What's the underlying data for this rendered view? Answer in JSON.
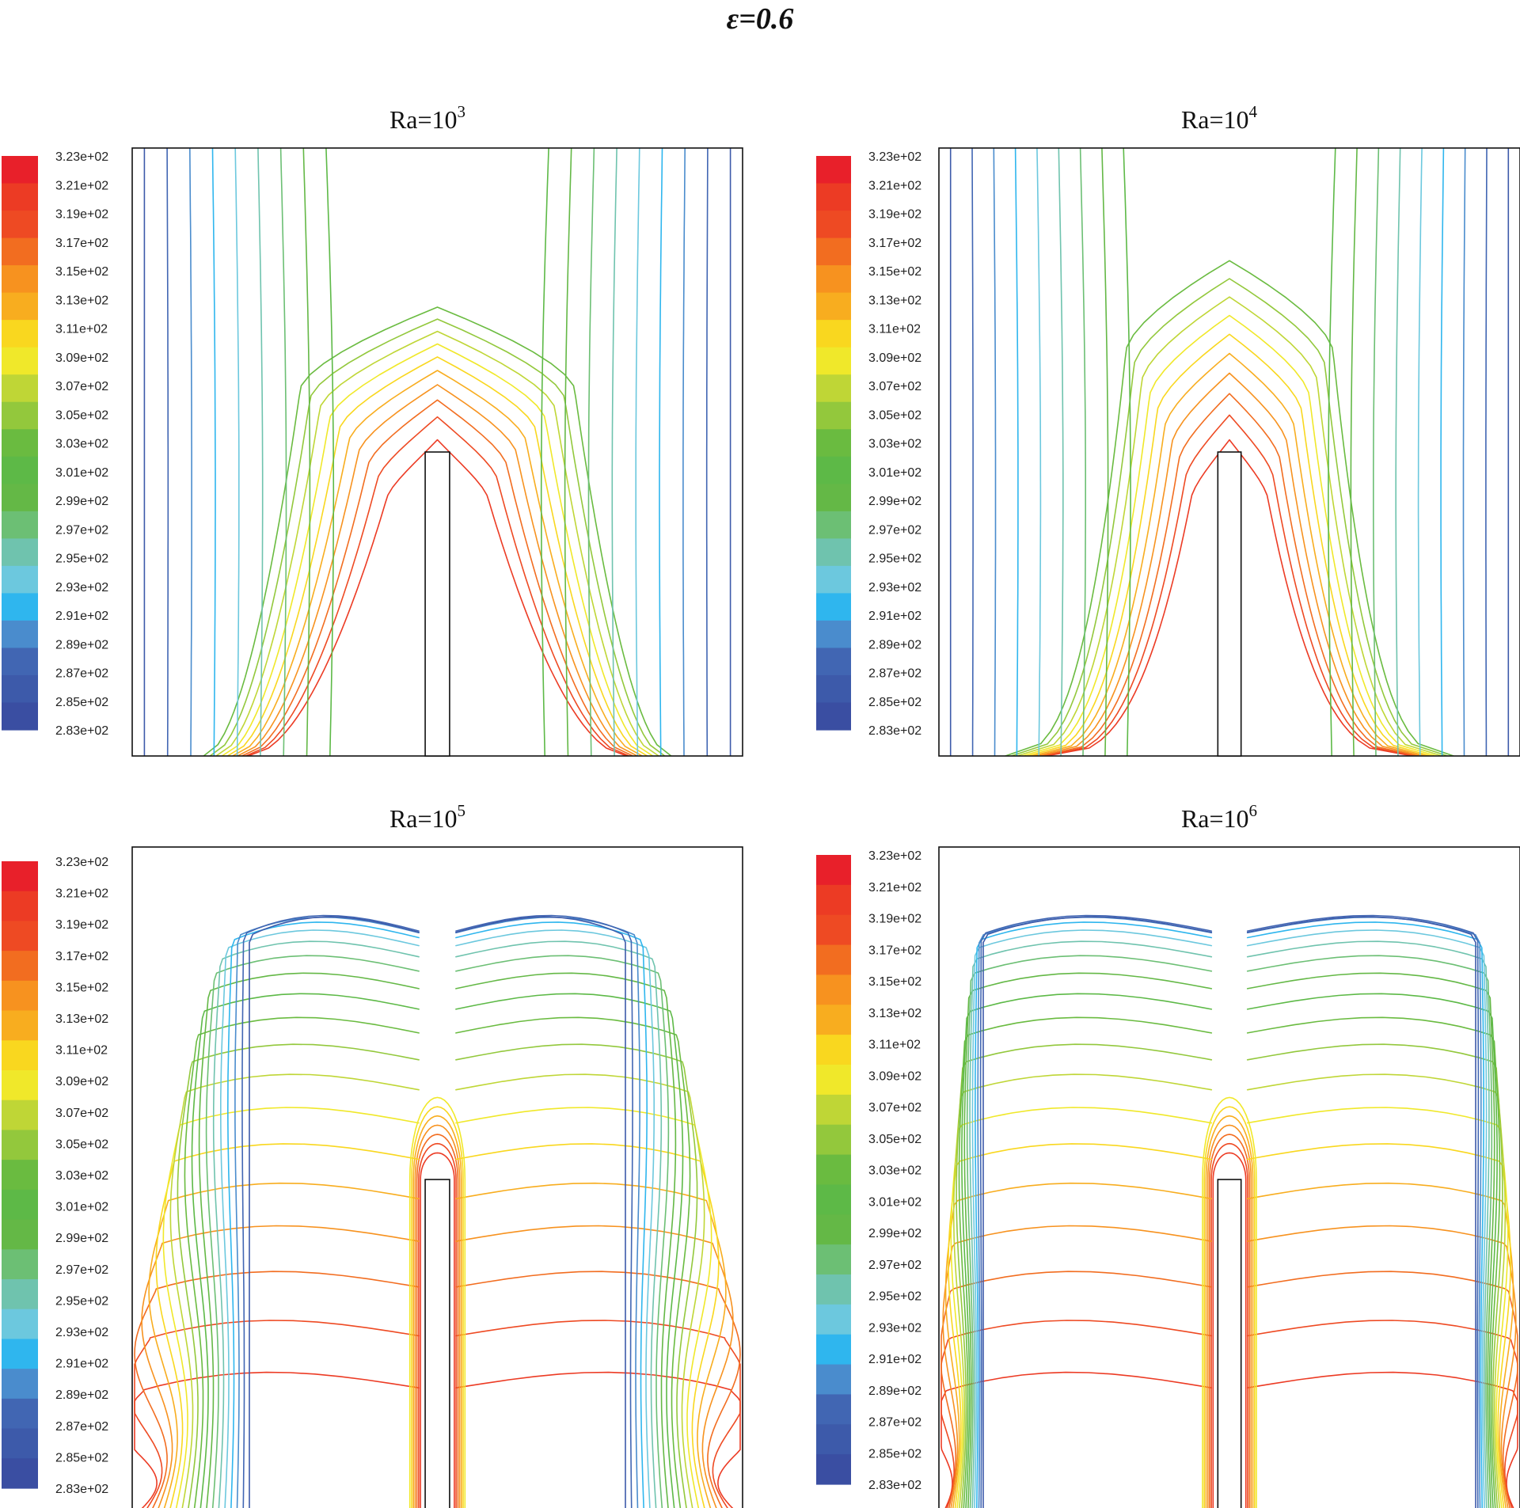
{
  "title": "ε=0.6",
  "colormap": [
    "#3a4ea2",
    "#3d5aaa",
    "#4166b3",
    "#4a8ccd",
    "#2fb6ee",
    "#6cc8de",
    "#6fc3ae",
    "#6cbf74",
    "#64b846",
    "#5db947",
    "#6abb40",
    "#93c83c",
    "#bfd636",
    "#f0e82a",
    "#f9d71f",
    "#f8ad1f",
    "#f7921f",
    "#f26d20",
    "#ee4a23",
    "#ec3b24",
    "#e8202a"
  ],
  "chart_data": [
    {
      "type": "contour",
      "panel": "Ra=10^3",
      "title_base": "Ra=10",
      "title_exp": "3",
      "colorbar_labels": [
        "3.23e+02",
        "3.21e+02",
        "3.19e+02",
        "3.17e+02",
        "3.15e+02",
        "3.13e+02",
        "3.11e+02",
        "3.09e+02",
        "3.07e+02",
        "3.05e+02",
        "3.03e+02",
        "3.01e+02",
        "2.99e+02",
        "2.97e+02",
        "2.95e+02",
        "2.93e+02",
        "2.91e+02",
        "2.89e+02",
        "2.87e+02",
        "2.85e+02",
        "2.83e+02"
      ],
      "levels": [
        3.21,
        3.19,
        3.17,
        3.15,
        3.13,
        3.11,
        3.09,
        3.07,
        3.05,
        3.03,
        3.01,
        2.99,
        2.97,
        2.95,
        2.93,
        2.91,
        2.89,
        2.87,
        2.85
      ],
      "pattern": "dome",
      "fin": {
        "x_center": 0.5,
        "width_frac": 0.04,
        "height_frac": 0.5
      }
    },
    {
      "type": "contour",
      "panel": "Ra=10^4",
      "title_base": "Ra=10",
      "title_exp": "4",
      "colorbar_labels": [
        "3.23e+02",
        "3.21e+02",
        "3.19e+02",
        "3.17e+02",
        "3.15e+02",
        "3.13e+02",
        "3.11e+02",
        "3.09e+02",
        "3.07e+02",
        "3.05e+02",
        "3.03e+02",
        "3.01e+02",
        "2.99e+02",
        "2.97e+02",
        "2.95e+02",
        "2.93e+02",
        "2.91e+02",
        "2.89e+02",
        "2.87e+02",
        "2.85e+02",
        "2.83e+02"
      ],
      "levels": [
        3.21,
        3.19,
        3.17,
        3.15,
        3.13,
        3.11,
        3.09,
        3.07,
        3.05,
        3.03,
        3.01,
        2.99,
        2.97,
        2.95,
        2.93,
        2.91,
        2.89,
        2.87,
        2.85
      ],
      "pattern": "plume",
      "fin": {
        "x_center": 0.5,
        "width_frac": 0.04,
        "height_frac": 0.5
      }
    },
    {
      "type": "contour",
      "panel": "Ra=10^5",
      "title_base": "Ra=10",
      "title_exp": "5",
      "colorbar_labels": [
        "3.23e+02",
        "3.21e+02",
        "3.19e+02",
        "3.17e+02",
        "3.15e+02",
        "3.13e+02",
        "3.11e+02",
        "3.09e+02",
        "3.07e+02",
        "3.05e+02",
        "3.03e+02",
        "3.01e+02",
        "2.99e+02",
        "2.97e+02",
        "2.95e+02",
        "2.93e+02",
        "2.91e+02",
        "2.89e+02",
        "2.87e+02",
        "2.85e+02",
        "2.83e+02"
      ],
      "levels": [
        3.21,
        3.19,
        3.17,
        3.15,
        3.13,
        3.11,
        3.09,
        3.07,
        3.05,
        3.03,
        3.01,
        2.99,
        2.97,
        2.95,
        2.93,
        2.91,
        2.89,
        2.87,
        2.85
      ],
      "pattern": "stratified",
      "fin": {
        "x_center": 0.5,
        "width_frac": 0.04,
        "height_frac": 0.5
      }
    },
    {
      "type": "contour",
      "panel": "Ra=10^6",
      "title_base": "Ra=10",
      "title_exp": "6",
      "colorbar_labels": [
        "3.23e+02",
        "3.21e+02",
        "3.19e+02",
        "3.17e+02",
        "3.15e+02",
        "3.13e+02",
        "3.11e+02",
        "3.09e+02",
        "3.07e+02",
        "3.05e+02",
        "3.03e+02",
        "3.01e+02",
        "2.99e+02",
        "2.97e+02",
        "2.95e+02",
        "2.93e+02",
        "2.91e+02",
        "2.89e+02",
        "2.87e+02",
        "2.85e+02",
        "2.83e+02"
      ],
      "levels": [
        3.21,
        3.19,
        3.17,
        3.15,
        3.13,
        3.11,
        3.09,
        3.07,
        3.05,
        3.03,
        3.01,
        2.99,
        2.97,
        2.95,
        2.93,
        2.91,
        2.89,
        2.87,
        2.85
      ],
      "pattern": "boundary-layer",
      "fin": {
        "x_center": 0.5,
        "width_frac": 0.04,
        "height_frac": 0.5
      }
    }
  ]
}
